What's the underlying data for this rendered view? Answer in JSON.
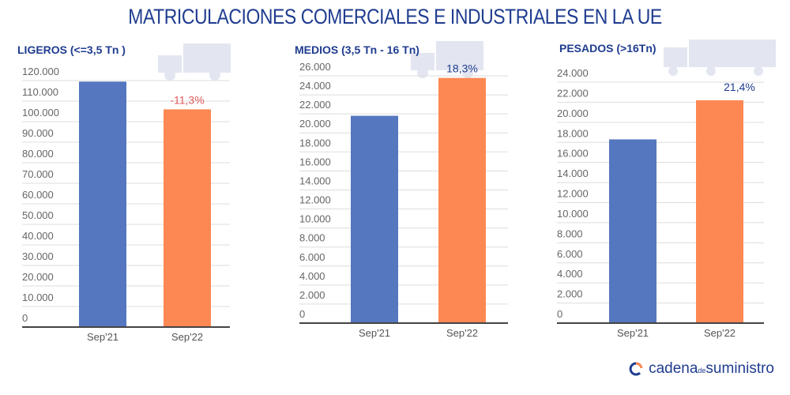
{
  "title": "MATRICULACIONES COMERCIALES E INDUSTRIALES EN LA UE",
  "logo": {
    "part1": "cadena",
    "part2": "de",
    "part3": "suministro"
  },
  "colors": {
    "sep21": "#5577bf",
    "sep22": "#fd8853",
    "title": "#1f3c8f",
    "negative": "#e05a5a"
  },
  "chart_data": [
    {
      "type": "bar",
      "title": "LIGEROS (<=3,5 Tn )",
      "categories": [
        "Sep'21",
        "Sep'22"
      ],
      "values": [
        119500,
        106000
      ],
      "ylim": [
        0,
        120000
      ],
      "yticks": [
        "0",
        "10.000",
        "20.000",
        "30.000",
        "40.000",
        "50.000",
        "60.000",
        "70.000",
        "80.000",
        "90.000",
        "100.000",
        "110.000",
        "120.000"
      ],
      "annotation": "-11,3%",
      "grid": true,
      "icon": "van-icon"
    },
    {
      "type": "bar",
      "title": "MEDIOS (3,5 Tn - 16 Tn)",
      "categories": [
        "Sep'21",
        "Sep'22"
      ],
      "values": [
        21800,
        25780
      ],
      "ylim": [
        0,
        26000
      ],
      "yticks": [
        "0",
        "2.000",
        "4.000",
        "6.000",
        "8.000",
        "10.000",
        "12.000",
        "14.000",
        "16.000",
        "18.000",
        "20.000",
        "22.000",
        "24.000",
        "26.000"
      ],
      "annotation": "18,3%",
      "grid": true,
      "icon": "truck-icon"
    },
    {
      "type": "bar",
      "title": "PESADOS (>16Tn)",
      "categories": [
        "Sep'21",
        "Sep'22"
      ],
      "values": [
        18300,
        22200
      ],
      "ylim": [
        0,
        24000
      ],
      "yticks": [
        "0",
        "2.000",
        "4.000",
        "6.000",
        "8.000",
        "10.000",
        "12.000",
        "14.000",
        "16.000",
        "18.000",
        "20.000",
        "22.000",
        "24.000"
      ],
      "annotation": "21,4%",
      "grid": true,
      "icon": "trailer-truck-icon"
    }
  ]
}
